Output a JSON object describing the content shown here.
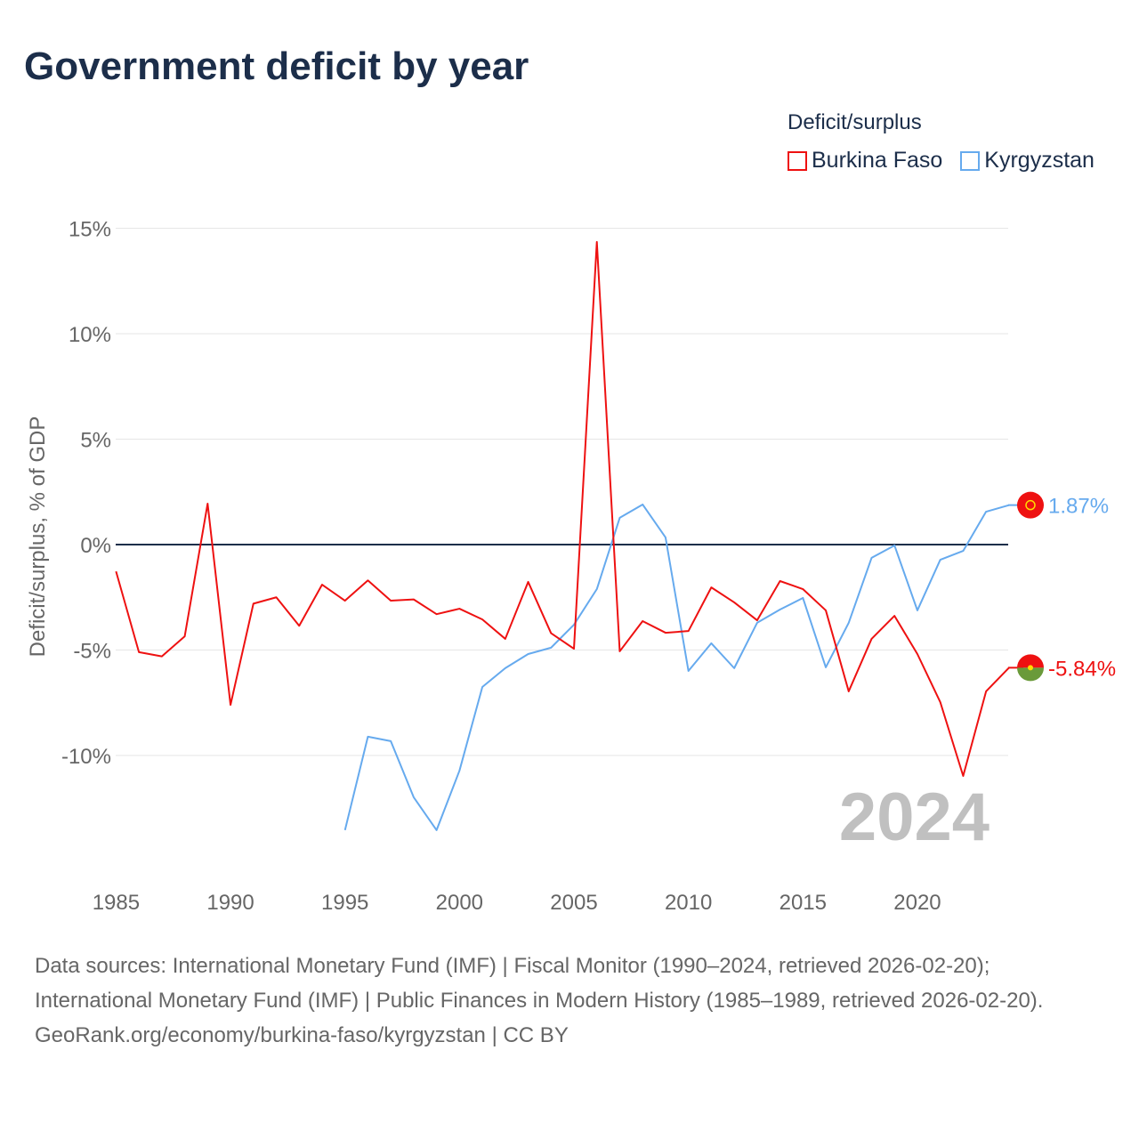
{
  "title": "Government deficit by year",
  "legend": {
    "title": "Deficit/surplus",
    "items": [
      "Burkina Faso",
      "Kyrgyzstan"
    ]
  },
  "colors": {
    "Burkina Faso": "#ee1111",
    "Kyrgyzstan": "#66aaee",
    "zero_line": "#1c2e4a"
  },
  "year_label": "2024",
  "sources": {
    "line1": "Data sources: International Monetary Fund (IMF) | Fiscal Monitor (1990–2024, retrieved 2026-02-20); International Monetary Fund (IMF) | Public Finances in Modern History (1985–1989, retrieved 2026-02-20).",
    "line2": "GeoRank.org/economy/burkina-faso/kyrgyzstan | CC BY"
  },
  "chart_data": {
    "type": "line",
    "title": "Government deficit by year",
    "xlabel": "",
    "ylabel": "Deficit/surplus, % of GDP",
    "xlim": [
      1985,
      2024
    ],
    "ylim": [
      -15,
      15
    ],
    "xticks": [
      1985,
      1990,
      1995,
      2000,
      2005,
      2010,
      2015,
      2020
    ],
    "xtick_labels": [
      "1985",
      "1990",
      "1995",
      "2000",
      "2005",
      "2010",
      "2015",
      "2020"
    ],
    "yticks": [
      15,
      10,
      5,
      0,
      -5,
      -10
    ],
    "ytick_labels": [
      "15%",
      "10%",
      "5%",
      "0%",
      "-5%",
      "-10%"
    ],
    "grid": true,
    "legend_position": "top-right",
    "series": [
      {
        "name": "Burkina Faso",
        "end_label": "-5.84%",
        "x": [
          1985,
          1986,
          1987,
          1988,
          1989,
          1990,
          1991,
          1992,
          1993,
          1994,
          1995,
          1996,
          1997,
          1998,
          1999,
          2000,
          2001,
          2002,
          2003,
          2004,
          2005,
          2006,
          2007,
          2008,
          2009,
          2010,
          2011,
          2012,
          2013,
          2014,
          2015,
          2016,
          2017,
          2018,
          2019,
          2020,
          2021,
          2022,
          2023,
          2024
        ],
        "y": [
          -1.27,
          -5.1,
          -5.3,
          -4.35,
          1.94,
          -7.6,
          -2.8,
          -2.5,
          -3.85,
          -1.9,
          -2.66,
          -1.7,
          -2.66,
          -2.6,
          -3.3,
          -3.04,
          -3.55,
          -4.47,
          -1.77,
          -4.2,
          -4.94,
          14.35,
          -5.06,
          -3.63,
          -4.18,
          -4.1,
          -2.03,
          -2.74,
          -3.59,
          -1.73,
          -2.11,
          -3.12,
          -6.96,
          -4.47,
          -3.38,
          -5.19,
          -7.47,
          -10.97,
          -6.96,
          -5.84
        ]
      },
      {
        "name": "Kyrgyzstan",
        "end_label": "1.87%",
        "x": [
          1995,
          1996,
          1997,
          1998,
          1999,
          2000,
          2001,
          2002,
          2003,
          2004,
          2005,
          2006,
          2007,
          2008,
          2009,
          2010,
          2011,
          2012,
          2013,
          2014,
          2015,
          2016,
          2017,
          2018,
          2019,
          2020,
          2021,
          2022,
          2023,
          2024
        ],
        "y": [
          -13.54,
          -9.11,
          -9.32,
          -11.98,
          -13.54,
          -10.72,
          -6.75,
          -5.86,
          -5.19,
          -4.89,
          -3.8,
          -2.11,
          1.27,
          1.9,
          0.34,
          -5.99,
          -4.68,
          -5.86,
          -3.71,
          -3.08,
          -2.53,
          -5.82,
          -3.71,
          -0.63,
          -0.04,
          -3.12,
          -0.72,
          -0.3,
          1.56,
          1.87
        ]
      }
    ]
  }
}
